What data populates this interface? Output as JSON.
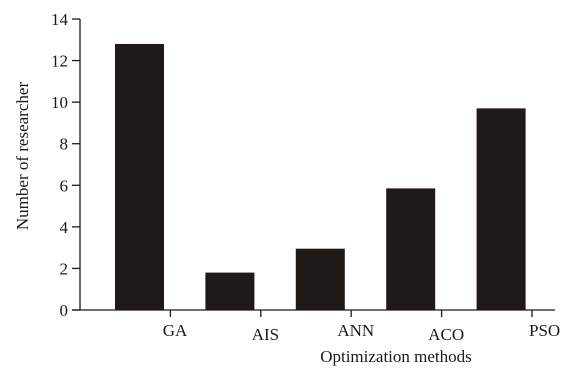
{
  "chart_data": {
    "type": "bar",
    "categories": [
      "GA",
      "AIS",
      "ANN",
      "ACO",
      "PSO"
    ],
    "values": [
      12.8,
      1.8,
      2.95,
      5.85,
      9.7
    ],
    "xlabel": "Optimization methods",
    "ylabel": "Number of researcher",
    "ylim": [
      0,
      14
    ],
    "yticks": [
      0,
      2,
      4,
      6,
      8,
      10,
      12,
      14
    ],
    "grid": false,
    "colors": {
      "bar": "#1f1a17",
      "axis": "#1a1a1a"
    }
  }
}
